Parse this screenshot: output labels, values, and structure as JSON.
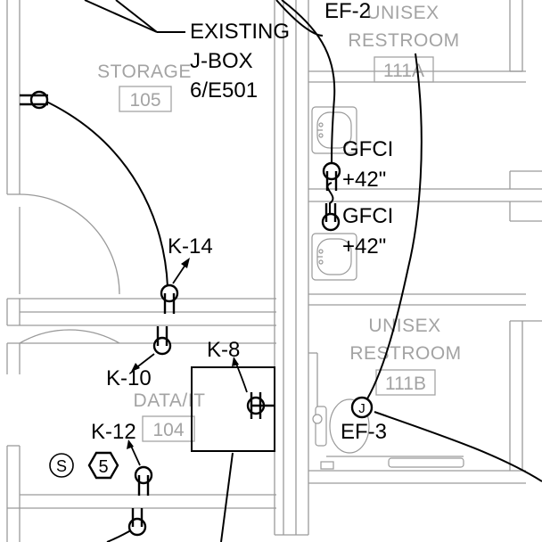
{
  "rooms": {
    "storage": {
      "name": "STORAGE",
      "number": "105"
    },
    "unisex_a": {
      "name_line1": "UNISEX",
      "name_line2": "RESTROOM",
      "number": "111A"
    },
    "unisex_b": {
      "name_line1": "UNISEX",
      "name_line2": "RESTROOM",
      "number": "111B"
    },
    "data_it": {
      "name": "DATA/IT",
      "number": "104"
    }
  },
  "callouts": {
    "existing_jbox": [
      "EXISTING",
      "J-BOX",
      "6/E501"
    ],
    "ef2": "EF-2",
    "ef3": "EF-3",
    "gfci_upper": [
      "GFCI",
      "+42\""
    ],
    "gfci_lower": [
      "GFCI",
      "+42\""
    ],
    "k14": "K-14",
    "k10": "K-10",
    "k8": "K-8",
    "k12": "K-12",
    "junction_letter": "J",
    "switch_letter": "S",
    "fixture_tag": "5"
  }
}
